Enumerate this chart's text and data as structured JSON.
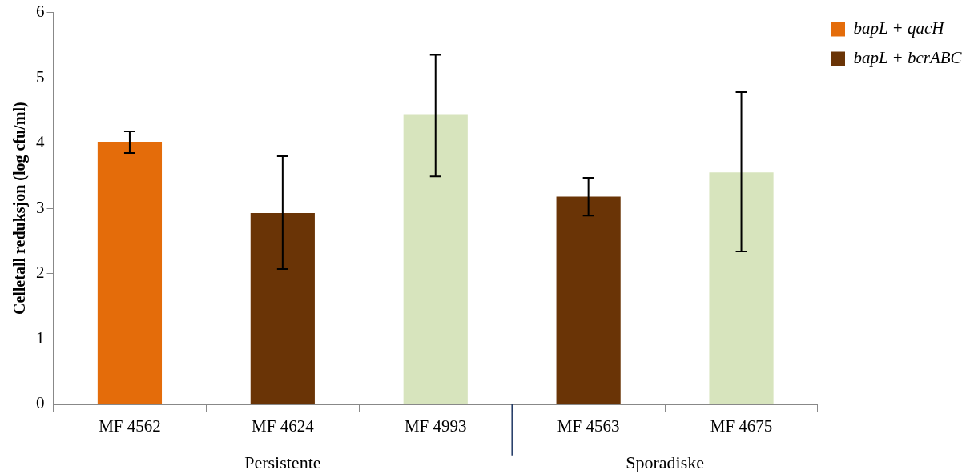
{
  "chart_data": {
    "type": "bar",
    "ylabel": "Celletall reduksjon (log cfu/ml)",
    "categories": [
      "MF 4562",
      "MF 4624",
      "MF 4993",
      "MF 4563",
      "MF 4675"
    ],
    "series": [
      {
        "name": "bapL + qacH",
        "color": "#e46c0a",
        "values": [
          4.02,
          null,
          null,
          null,
          null
        ],
        "errors": [
          [
            3.85,
            4.18
          ],
          null,
          null,
          null,
          null
        ]
      },
      {
        "name": "bapL + bcrABC",
        "color": "#6a3406",
        "values": [
          null,
          2.93,
          null,
          3.18,
          null
        ],
        "errors": [
          null,
          [
            2.07,
            3.8
          ],
          null,
          [
            2.89,
            3.47
          ],
          null
        ]
      },
      {
        "color": "#d7e4bd",
        "values": [
          null,
          null,
          4.43,
          null,
          3.55
        ],
        "errors": [
          null,
          null,
          [
            3.49,
            5.35
          ],
          null,
          [
            2.34,
            4.78
          ]
        ]
      }
    ],
    "ylim": [
      0,
      6
    ],
    "yticks": [
      0,
      1,
      2,
      3,
      4,
      5,
      6
    ],
    "grid": false,
    "stacked": true,
    "legend": "top right",
    "annotations": [
      "Persistente",
      "Sporadiske"
    ]
  }
}
